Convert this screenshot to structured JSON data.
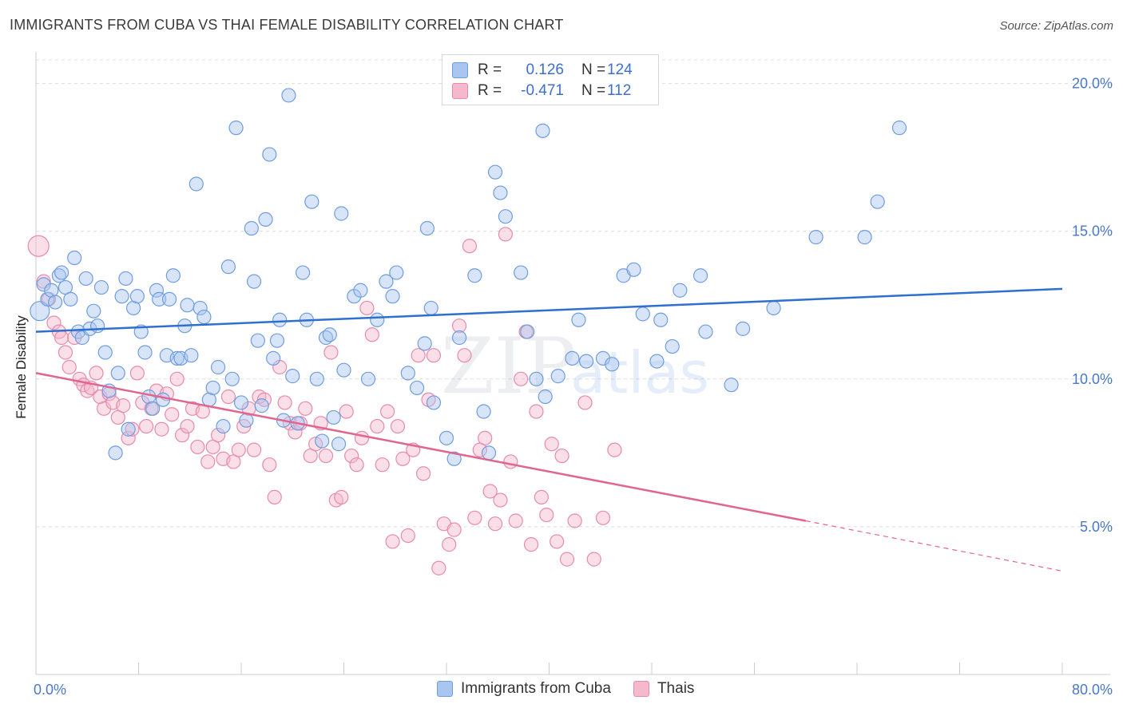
{
  "title": "IMMIGRANTS FROM CUBA VS THAI FEMALE DISABILITY CORRELATION CHART",
  "source": "Source: ZipAtlas.com",
  "watermark": {
    "part1": "ZIP",
    "part2": "atlas"
  },
  "legend": {
    "rows": [
      {
        "r_label": "R =",
        "r_value": "0.126",
        "n_label": "N =",
        "n_value": "124"
      },
      {
        "r_label": "R =",
        "r_value": "-0.471",
        "n_label": "N =",
        "n_value": "112"
      }
    ]
  },
  "bottom_legend": {
    "cuba": "Immigrants from Cuba",
    "thais": "Thais"
  },
  "colors": {
    "cuba_fill": "#a9c6f0",
    "cuba_stroke": "#6f9de0",
    "cuba_line": "#2f6fd0",
    "thai_fill": "#f5b8cc",
    "thai_stroke": "#e88aab",
    "thai_line": "#e0668f",
    "grid": "#dcdcdc",
    "axis_text": "#4a78c8"
  },
  "chart_data": {
    "type": "scatter",
    "title": "IMMIGRANTS FROM CUBA VS THAI FEMALE DISABILITY CORRELATION CHART",
    "xlabel": "",
    "ylabel": "Female Disability",
    "xlim": [
      0,
      80
    ],
    "ylim": [
      0,
      20.8
    ],
    "x_tick_labels": [
      "0.0%",
      "80.0%"
    ],
    "y_ticks": [
      5,
      10,
      15,
      20
    ],
    "y_tick_labels": [
      "5.0%",
      "10.0%",
      "15.0%",
      "20.0%"
    ],
    "series": [
      {
        "name": "Immigrants from Cuba",
        "r": 0.126,
        "n": 124,
        "trend": {
          "x0": 0,
          "y0": 11.6,
          "x1": 80,
          "y1": 13.05
        },
        "points": [
          [
            0.3,
            12.3
          ],
          [
            0.6,
            13.2
          ],
          [
            0.9,
            12.7
          ],
          [
            1.2,
            13.0
          ],
          [
            1.5,
            12.6
          ],
          [
            1.8,
            13.5
          ],
          [
            2.0,
            13.6
          ],
          [
            2.3,
            13.1
          ],
          [
            2.7,
            12.7
          ],
          [
            3.0,
            14.1
          ],
          [
            3.3,
            11.6
          ],
          [
            3.6,
            11.4
          ],
          [
            3.9,
            13.4
          ],
          [
            4.2,
            11.7
          ],
          [
            4.5,
            12.3
          ],
          [
            4.8,
            11.8
          ],
          [
            5.1,
            13.1
          ],
          [
            5.4,
            10.9
          ],
          [
            5.7,
            9.6
          ],
          [
            6.2,
            7.5
          ],
          [
            6.4,
            10.2
          ],
          [
            6.7,
            12.8
          ],
          [
            7.0,
            13.4
          ],
          [
            7.2,
            8.3
          ],
          [
            7.6,
            12.4
          ],
          [
            7.9,
            12.8
          ],
          [
            8.2,
            11.6
          ],
          [
            8.5,
            10.9
          ],
          [
            8.8,
            9.4
          ],
          [
            9.1,
            9.0
          ],
          [
            9.4,
            13.0
          ],
          [
            9.6,
            12.7
          ],
          [
            9.9,
            9.3
          ],
          [
            10.2,
            10.8
          ],
          [
            10.4,
            12.7
          ],
          [
            10.7,
            13.5
          ],
          [
            11.0,
            10.7
          ],
          [
            11.3,
            10.7
          ],
          [
            11.6,
            11.8
          ],
          [
            11.8,
            12.5
          ],
          [
            12.1,
            10.8
          ],
          [
            12.5,
            16.6
          ],
          [
            12.8,
            12.4
          ],
          [
            13.1,
            12.1
          ],
          [
            13.5,
            9.3
          ],
          [
            13.8,
            9.7
          ],
          [
            14.2,
            10.4
          ],
          [
            14.6,
            8.4
          ],
          [
            15.0,
            13.8
          ],
          [
            15.3,
            10.0
          ],
          [
            15.6,
            18.5
          ],
          [
            16.0,
            9.2
          ],
          [
            16.4,
            8.6
          ],
          [
            16.8,
            15.1
          ],
          [
            17.0,
            13.3
          ],
          [
            17.3,
            11.3
          ],
          [
            17.6,
            9.1
          ],
          [
            17.9,
            15.4
          ],
          [
            18.2,
            17.6
          ],
          [
            18.5,
            10.7
          ],
          [
            18.8,
            11.3
          ],
          [
            19.0,
            12.0
          ],
          [
            19.3,
            8.6
          ],
          [
            19.7,
            19.6
          ],
          [
            20.0,
            10.1
          ],
          [
            20.4,
            8.5
          ],
          [
            20.8,
            13.6
          ],
          [
            21.1,
            12.0
          ],
          [
            21.5,
            16.0
          ],
          [
            21.9,
            10.0
          ],
          [
            22.3,
            7.9
          ],
          [
            22.6,
            11.4
          ],
          [
            22.9,
            11.5
          ],
          [
            23.2,
            8.7
          ],
          [
            23.6,
            7.8
          ],
          [
            23.8,
            15.6
          ],
          [
            24.0,
            10.3
          ],
          [
            24.8,
            12.8
          ],
          [
            25.3,
            13.0
          ],
          [
            25.9,
            10.0
          ],
          [
            26.6,
            12.0
          ],
          [
            27.3,
            13.3
          ],
          [
            27.8,
            12.8
          ],
          [
            28.1,
            13.6
          ],
          [
            29.0,
            10.2
          ],
          [
            29.7,
            9.7
          ],
          [
            30.3,
            11.2
          ],
          [
            30.5,
            15.1
          ],
          [
            30.8,
            12.4
          ],
          [
            31.0,
            9.2
          ],
          [
            32.0,
            8.0
          ],
          [
            32.6,
            7.3
          ],
          [
            33.0,
            11.4
          ],
          [
            34.2,
            13.5
          ],
          [
            34.9,
            8.9
          ],
          [
            35.3,
            7.5
          ],
          [
            35.8,
            17.0
          ],
          [
            36.2,
            16.3
          ],
          [
            36.6,
            15.5
          ],
          [
            37.8,
            13.6
          ],
          [
            38.3,
            11.6
          ],
          [
            39.0,
            10.0
          ],
          [
            39.5,
            18.4
          ],
          [
            39.7,
            9.4
          ],
          [
            40.7,
            10.1
          ],
          [
            41.8,
            10.7
          ],
          [
            42.3,
            12.0
          ],
          [
            42.9,
            10.6
          ],
          [
            44.2,
            10.7
          ],
          [
            44.9,
            10.5
          ],
          [
            45.8,
            13.5
          ],
          [
            46.6,
            13.7
          ],
          [
            47.3,
            12.2
          ],
          [
            48.4,
            10.6
          ],
          [
            48.7,
            12.0
          ],
          [
            49.6,
            11.1
          ],
          [
            50.2,
            13.0
          ],
          [
            51.8,
            13.5
          ],
          [
            52.2,
            11.6
          ],
          [
            54.2,
            9.8
          ],
          [
            55.1,
            11.7
          ],
          [
            57.5,
            12.4
          ],
          [
            60.8,
            14.8
          ],
          [
            64.6,
            14.8
          ],
          [
            65.6,
            16.0
          ],
          [
            67.3,
            18.5
          ]
        ]
      },
      {
        "name": "Thais",
        "r": -0.471,
        "n": 112,
        "trend": {
          "x0": 0,
          "y0": 10.2,
          "x1": 60,
          "y1": 5.2,
          "dash_x1": 80,
          "dash_y1": 3.5
        },
        "points": [
          [
            0.2,
            14.5
          ],
          [
            0.6,
            13.3
          ],
          [
            1.0,
            12.7
          ],
          [
            1.4,
            11.9
          ],
          [
            1.8,
            11.6
          ],
          [
            2.0,
            11.4
          ],
          [
            2.3,
            10.9
          ],
          [
            2.6,
            10.4
          ],
          [
            3.0,
            11.4
          ],
          [
            3.4,
            10.0
          ],
          [
            3.7,
            9.8
          ],
          [
            4.0,
            9.6
          ],
          [
            4.3,
            9.7
          ],
          [
            4.7,
            10.2
          ],
          [
            5.0,
            9.4
          ],
          [
            5.3,
            9.0
          ],
          [
            5.7,
            9.5
          ],
          [
            6.0,
            9.2
          ],
          [
            6.4,
            8.7
          ],
          [
            6.8,
            9.1
          ],
          [
            7.2,
            8.0
          ],
          [
            7.5,
            8.3
          ],
          [
            7.9,
            10.2
          ],
          [
            8.3,
            9.2
          ],
          [
            8.6,
            8.4
          ],
          [
            9.0,
            9.0
          ],
          [
            9.4,
            9.6
          ],
          [
            9.8,
            8.3
          ],
          [
            10.2,
            9.5
          ],
          [
            10.6,
            8.8
          ],
          [
            11.0,
            10.0
          ],
          [
            11.4,
            8.1
          ],
          [
            11.8,
            8.4
          ],
          [
            12.2,
            9.0
          ],
          [
            12.6,
            7.7
          ],
          [
            13.0,
            8.9
          ],
          [
            13.4,
            7.2
          ],
          [
            13.8,
            7.7
          ],
          [
            14.2,
            8.1
          ],
          [
            14.6,
            7.3
          ],
          [
            15.0,
            9.4
          ],
          [
            15.4,
            7.2
          ],
          [
            15.8,
            7.6
          ],
          [
            16.2,
            8.4
          ],
          [
            16.6,
            9.0
          ],
          [
            17.0,
            7.6
          ],
          [
            17.4,
            9.4
          ],
          [
            17.8,
            9.3
          ],
          [
            18.2,
            7.1
          ],
          [
            18.6,
            6.0
          ],
          [
            19.0,
            10.4
          ],
          [
            19.4,
            9.2
          ],
          [
            19.8,
            8.5
          ],
          [
            20.2,
            8.2
          ],
          [
            20.6,
            8.5
          ],
          [
            21.0,
            9.0
          ],
          [
            21.4,
            7.4
          ],
          [
            21.8,
            7.8
          ],
          [
            22.2,
            8.5
          ],
          [
            22.6,
            7.4
          ],
          [
            23.0,
            10.9
          ],
          [
            23.4,
            5.9
          ],
          [
            23.8,
            6.0
          ],
          [
            24.2,
            8.9
          ],
          [
            24.6,
            7.4
          ],
          [
            25.0,
            7.1
          ],
          [
            25.4,
            8.0
          ],
          [
            25.8,
            12.4
          ],
          [
            26.2,
            11.5
          ],
          [
            26.6,
            8.4
          ],
          [
            27.0,
            7.1
          ],
          [
            27.4,
            8.9
          ],
          [
            27.8,
            4.5
          ],
          [
            28.2,
            8.4
          ],
          [
            28.6,
            7.3
          ],
          [
            29.0,
            4.7
          ],
          [
            29.4,
            7.6
          ],
          [
            29.8,
            10.8
          ],
          [
            30.2,
            6.8
          ],
          [
            30.6,
            9.3
          ],
          [
            31.0,
            10.8
          ],
          [
            31.4,
            3.6
          ],
          [
            31.8,
            5.1
          ],
          [
            32.2,
            4.4
          ],
          [
            32.6,
            4.9
          ],
          [
            33.0,
            11.8
          ],
          [
            33.4,
            10.8
          ],
          [
            33.8,
            14.5
          ],
          [
            34.2,
            5.3
          ],
          [
            34.6,
            7.6
          ],
          [
            35.0,
            8.0
          ],
          [
            35.4,
            6.2
          ],
          [
            35.8,
            5.1
          ],
          [
            36.2,
            5.9
          ],
          [
            36.6,
            14.9
          ],
          [
            37.0,
            7.2
          ],
          [
            37.4,
            5.2
          ],
          [
            37.8,
            10.0
          ],
          [
            38.2,
            11.6
          ],
          [
            38.6,
            4.4
          ],
          [
            39.0,
            8.9
          ],
          [
            39.4,
            6.0
          ],
          [
            39.8,
            5.4
          ],
          [
            40.2,
            7.8
          ],
          [
            40.6,
            4.5
          ],
          [
            41.0,
            7.4
          ],
          [
            41.4,
            3.9
          ],
          [
            42.0,
            5.2
          ],
          [
            42.8,
            9.2
          ],
          [
            43.5,
            3.9
          ],
          [
            44.2,
            5.3
          ],
          [
            45.1,
            7.6
          ]
        ]
      }
    ]
  }
}
